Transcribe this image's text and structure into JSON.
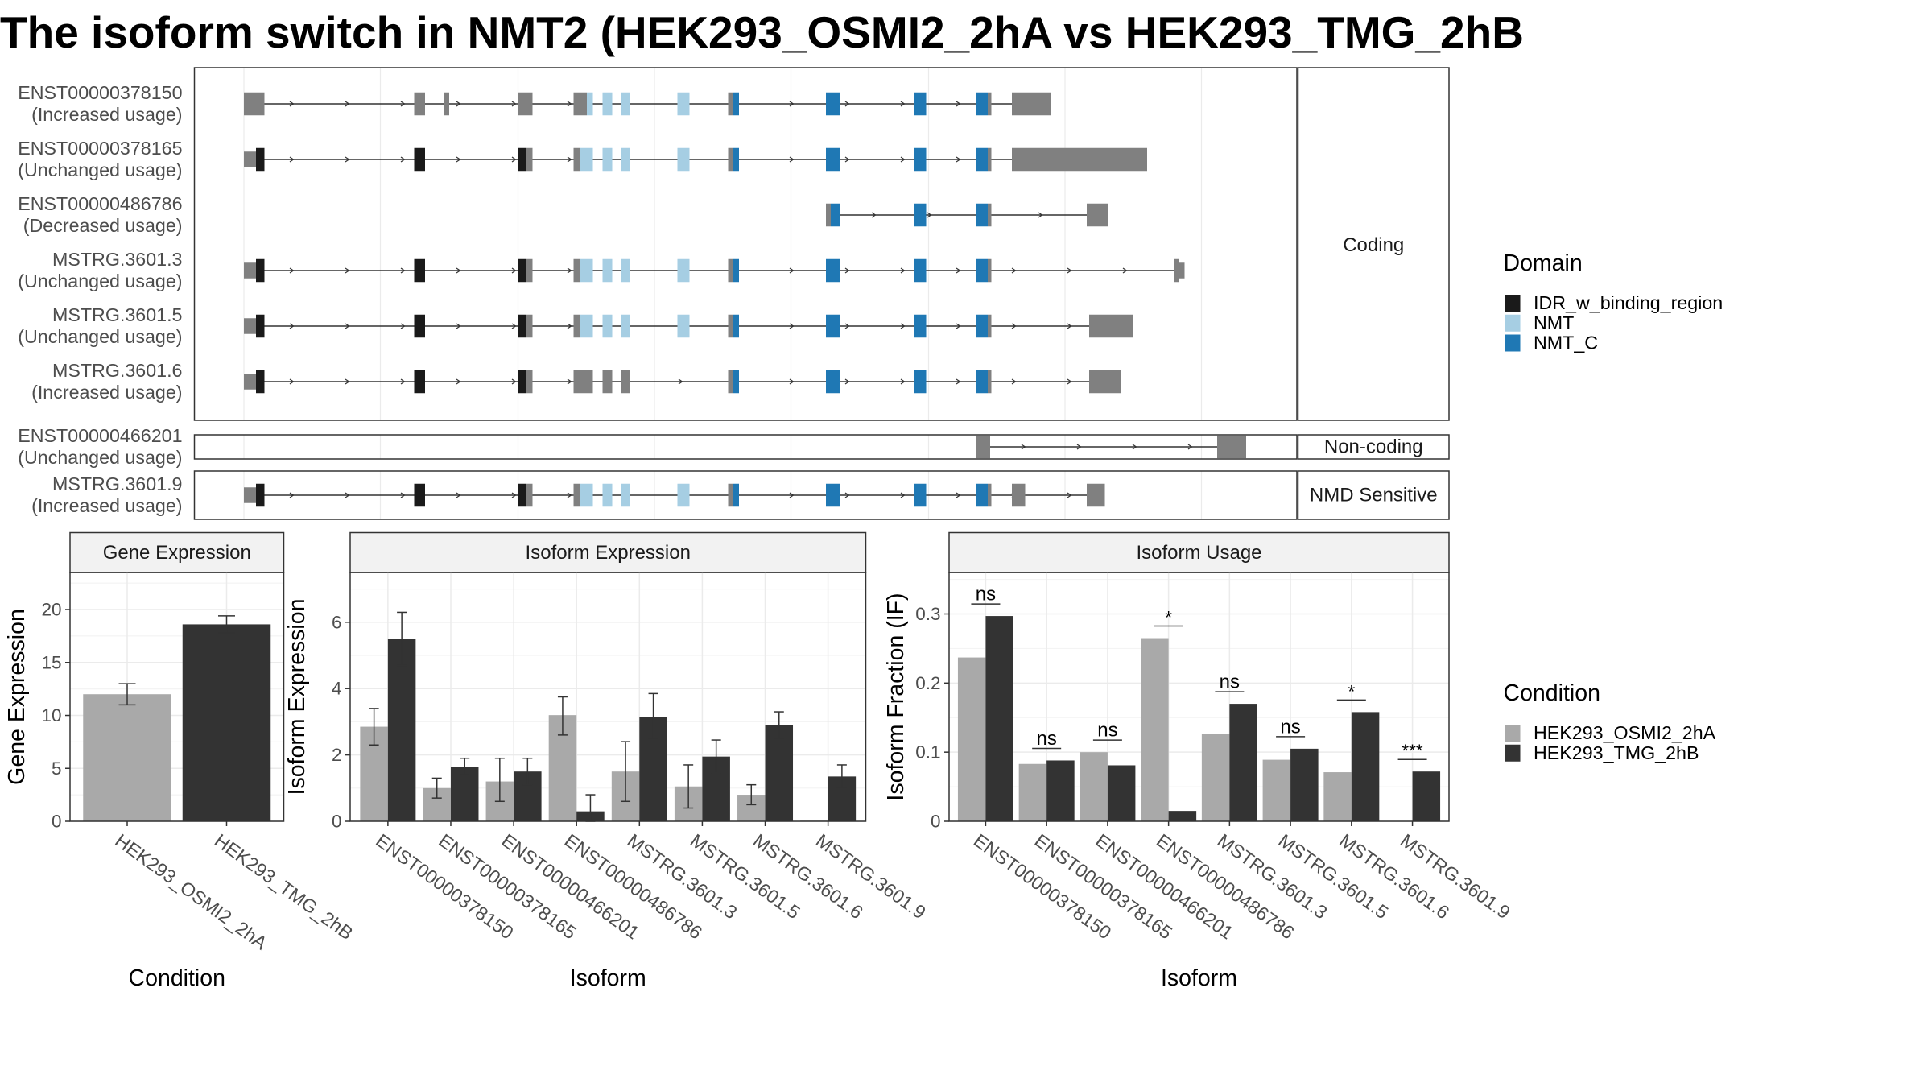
{
  "title": "The isoform switch in NMT2 (HEK293_OSMI2_2hA vs HEK293_TMG_2hB",
  "colors": {
    "utr": "#808080",
    "idr": "#1a1a1a",
    "nmt": "#a6cee3",
    "nmt_c": "#1f78b4",
    "cond_a": "#a9a9a9",
    "cond_b": "#333333",
    "strip": "#f2f2f2",
    "grid": "#ebebeb"
  },
  "structure": {
    "coding_label": "Coding",
    "noncoding_label": "Non-coding",
    "nmd_label": "NMD Sensitive",
    "isoforms": [
      {
        "id": "ENST00000378150",
        "usage": "(Increased usage)",
        "group": "coding"
      },
      {
        "id": "ENST00000378165",
        "usage": "(Unchanged usage)",
        "group": "coding"
      },
      {
        "id": "ENST00000486786",
        "usage": "(Decreased usage)",
        "group": "coding"
      },
      {
        "id": "MSTRG.3601.3",
        "usage": "(Unchanged usage)",
        "group": "coding"
      },
      {
        "id": "MSTRG.3601.5",
        "usage": "(Unchanged usage)",
        "group": "coding"
      },
      {
        "id": "MSTRG.3601.6",
        "usage": "(Increased usage)",
        "group": "coding"
      },
      {
        "id": "ENST00000466201",
        "usage": "(Unchanged usage)",
        "group": "noncoding"
      },
      {
        "id": "MSTRG.3601.9",
        "usage": "(Increased usage)",
        "group": "nmd"
      }
    ]
  },
  "legend_domain": {
    "title": "Domain",
    "items": [
      {
        "label": "IDR_w_binding_region",
        "color": "#1a1a1a"
      },
      {
        "label": "NMT",
        "color": "#a6cee3"
      },
      {
        "label": "NMT_C",
        "color": "#1f78b4"
      }
    ]
  },
  "legend_condition": {
    "title": "Condition",
    "items": [
      {
        "label": "HEK293_OSMI2_2hA",
        "color": "#a9a9a9"
      },
      {
        "label": "HEK293_TMG_2hB",
        "color": "#333333"
      }
    ]
  },
  "chart_data": [
    {
      "type": "bar",
      "title": "Gene Expression",
      "xlabel": "Condition",
      "ylabel": "Gene Expression",
      "ylim": [
        0,
        23.5
      ],
      "yticks": [
        0,
        5,
        10,
        15,
        20
      ],
      "categories": [
        "HEK293_OSMI2_2hA",
        "HEK293_TMG_2hB"
      ],
      "values": [
        12.0,
        18.6
      ],
      "errors": [
        [
          11.0,
          13.0
        ],
        [
          17.8,
          19.4
        ]
      ],
      "colors": [
        "#a9a9a9",
        "#333333"
      ]
    },
    {
      "type": "bar",
      "title": "Isoform Expression",
      "xlabel": "Isoform",
      "ylabel": "Isoform Expression",
      "ylim": [
        0,
        7.5
      ],
      "yticks": [
        0,
        2,
        4,
        6
      ],
      "categories": [
        "ENST00000378150",
        "ENST00000378165",
        "ENST00000466201",
        "ENST00000486786",
        "MSTRG.3601.3",
        "MSTRG.3601.5",
        "MSTRG.3601.6",
        "MSTRG.3601.9"
      ],
      "series": [
        {
          "name": "HEK293_OSMI2_2hA",
          "values": [
            2.85,
            1.0,
            1.2,
            3.2,
            1.5,
            1.05,
            0.8,
            0.02
          ],
          "errors": [
            [
              2.3,
              3.4
            ],
            [
              0.7,
              1.3
            ],
            [
              0.6,
              1.9
            ],
            [
              2.6,
              3.75
            ],
            [
              0.6,
              2.4
            ],
            [
              0.4,
              1.7
            ],
            [
              0.5,
              1.1
            ],
            null
          ]
        },
        {
          "name": "HEK293_TMG_2hB",
          "values": [
            5.5,
            1.65,
            1.5,
            0.3,
            3.15,
            1.95,
            2.9,
            1.35
          ],
          "errors": [
            [
              4.7,
              6.3
            ],
            [
              1.4,
              1.9
            ],
            [
              1.1,
              1.9
            ],
            [
              0.0,
              0.8
            ],
            [
              2.5,
              3.85
            ],
            [
              1.45,
              2.45
            ],
            [
              2.5,
              3.3
            ],
            [
              1.0,
              1.7
            ]
          ]
        }
      ]
    },
    {
      "type": "bar",
      "title": "Isoform Usage",
      "xlabel": "Isoform",
      "ylabel": "Isoform Fraction (IF)",
      "ylim": [
        0,
        0.36
      ],
      "yticks": [
        0.0,
        0.1,
        0.2,
        0.3
      ],
      "categories": [
        "ENST00000378150",
        "ENST00000378165",
        "ENST00000466201",
        "ENST00000486786",
        "MSTRG.3601.3",
        "MSTRG.3601.5",
        "MSTRG.3601.6",
        "MSTRG.3601.9"
      ],
      "series": [
        {
          "name": "HEK293_OSMI2_2hA",
          "values": [
            0.237,
            0.083,
            0.1,
            0.265,
            0.126,
            0.089,
            0.071,
            0.0
          ]
        },
        {
          "name": "HEK293_TMG_2hB",
          "values": [
            0.297,
            0.088,
            0.081,
            0.015,
            0.17,
            0.105,
            0.158,
            0.072
          ]
        }
      ],
      "significance": [
        "ns",
        "ns",
        "ns",
        "*",
        "ns",
        "ns",
        "*",
        "***"
      ]
    }
  ]
}
